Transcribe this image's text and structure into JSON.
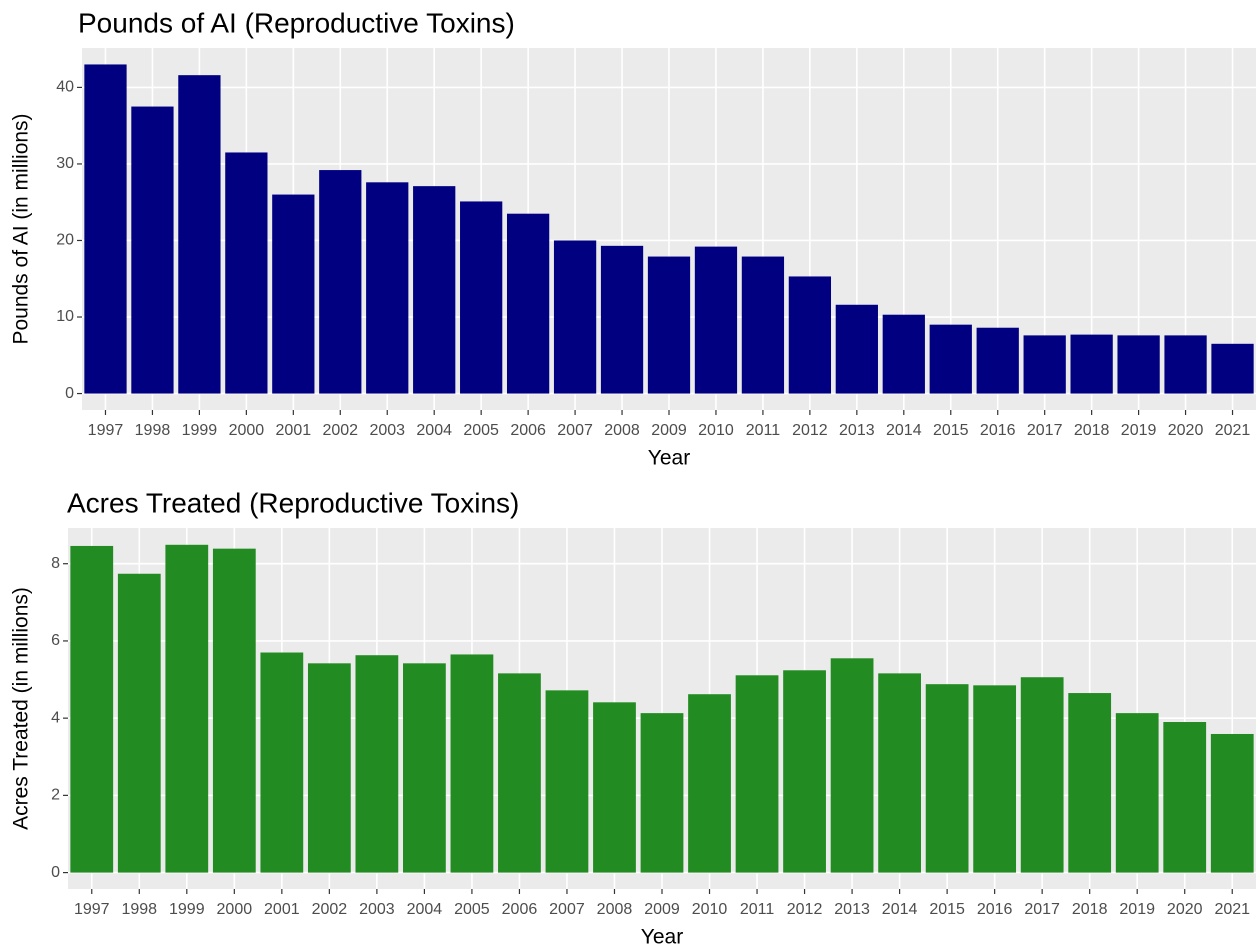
{
  "chart_data": [
    {
      "type": "bar",
      "title": "Pounds of AI (Reproductive Toxins)",
      "x_label": "Year",
      "y_label": "Pounds of AI (in millions)",
      "categories": [
        "1997",
        "1998",
        "1999",
        "2000",
        "2001",
        "2002",
        "2003",
        "2004",
        "2005",
        "2006",
        "2007",
        "2008",
        "2009",
        "2010",
        "2011",
        "2012",
        "2013",
        "2014",
        "2015",
        "2016",
        "2017",
        "2018",
        "2019",
        "2020",
        "2021"
      ],
      "values": [
        43.0,
        37.5,
        41.6,
        31.5,
        26.0,
        29.2,
        27.6,
        27.1,
        25.1,
        23.5,
        20.0,
        19.3,
        17.9,
        19.2,
        17.9,
        15.3,
        11.6,
        10.3,
        9.0,
        8.6,
        7.6,
        7.7,
        7.6,
        7.6,
        6.5
      ],
      "color": "#000080",
      "ylim": [
        -2.15,
        45.15
      ],
      "yticks": [
        0,
        10,
        20,
        30,
        40
      ],
      "grid": true
    },
    {
      "type": "bar",
      "title": "Acres Treated (Reproductive Toxins)",
      "x_label": "Year",
      "y_label": "Acres Treated (in millions)",
      "categories": [
        "1997",
        "1998",
        "1999",
        "2000",
        "2001",
        "2002",
        "2003",
        "2004",
        "2005",
        "2006",
        "2007",
        "2008",
        "2009",
        "2010",
        "2011",
        "2012",
        "2013",
        "2014",
        "2015",
        "2016",
        "2017",
        "2018",
        "2019",
        "2020",
        "2021"
      ],
      "values": [
        8.46,
        7.74,
        8.49,
        8.39,
        5.7,
        5.42,
        5.63,
        5.42,
        5.65,
        5.16,
        4.72,
        4.41,
        4.13,
        4.62,
        5.11,
        5.24,
        5.55,
        5.16,
        4.88,
        4.85,
        5.06,
        4.65,
        4.13,
        3.9,
        3.59
      ],
      "color": "#228b22",
      "ylim": [
        -0.425,
        8.925
      ],
      "yticks": [
        0,
        2,
        4,
        6,
        8
      ],
      "grid": true
    }
  ]
}
